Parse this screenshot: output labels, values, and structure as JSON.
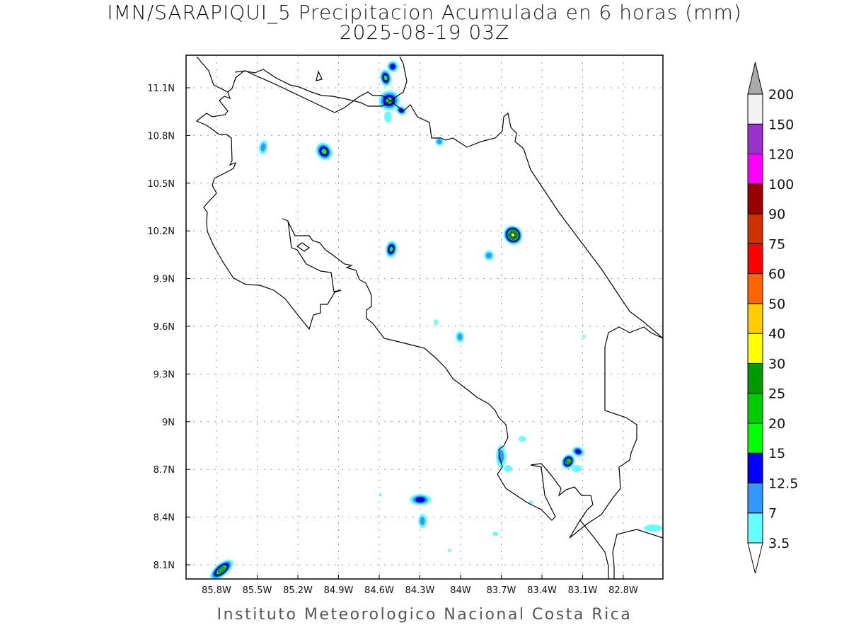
{
  "header": {
    "title": "IMN/SARAPIQUI_5 Precipitacion Acumulada en 6 horas (mm)",
    "subtitle": "2025-08-19 03Z"
  },
  "footer": "Instituto Meteorologico Nacional Costa Rica",
  "map": {
    "region": "Costa Rica",
    "lat_labels": [
      "11.1N",
      "10.8N",
      "10.5N",
      "10.2N",
      "9.9N",
      "9.6N",
      "9.3N",
      "9N",
      "8.7N",
      "8.4N",
      "8.1N"
    ],
    "lon_labels": [
      "85.8W",
      "85.5W",
      "85.2W",
      "84.9W",
      "84.6W",
      "84.3W",
      "84W",
      "83.7W",
      "83.4W",
      "83.1W",
      "82.8W"
    ],
    "grid": "dotted"
  },
  "colorbar": {
    "labels": [
      "3.5",
      "7",
      "12.5",
      "15",
      "20",
      "25",
      "30",
      "40",
      "50",
      "60",
      "75",
      "90",
      "100",
      "120",
      "150",
      "200"
    ],
    "colors": [
      "#66ffff",
      "#3399ff",
      "#0000ff",
      "#00ff00",
      "#00cc00",
      "#009900",
      "#ffff00",
      "#ffcc00",
      "#ff6600",
      "#ff0000",
      "#cc3300",
      "#990000",
      "#ff00ff",
      "#9933cc",
      "#f2f2f2"
    ],
    "over_color": "#aaaaaa",
    "under_color": "#ffffff"
  }
}
